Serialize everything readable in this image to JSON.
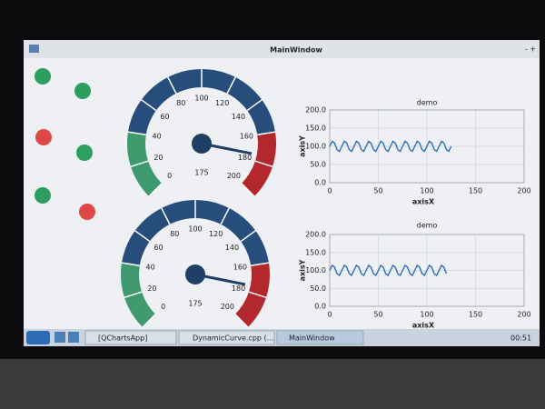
{
  "window": {
    "title": "MainWindow"
  },
  "gauges": [
    {
      "ticks": [
        0,
        20,
        40,
        60,
        80,
        100,
        120,
        140,
        160,
        180,
        200
      ],
      "value": 175,
      "sections": [
        {
          "from": 0,
          "to": 40,
          "color": "#3f9a6e"
        },
        {
          "from": 40,
          "to": 160,
          "color": "#264d7c"
        },
        {
          "from": 160,
          "to": 200,
          "color": "#b3282d"
        }
      ]
    },
    {
      "ticks": [
        0,
        20,
        40,
        60,
        80,
        100,
        120,
        140,
        160,
        180,
        200
      ],
      "value": 175,
      "sections": [
        {
          "from": 0,
          "to": 40,
          "color": "#3f9a6e"
        },
        {
          "from": 40,
          "to": 160,
          "color": "#264d7c"
        },
        {
          "from": 160,
          "to": 200,
          "color": "#b3282d"
        }
      ]
    }
  ],
  "charts": [
    {
      "type": "line",
      "title": "demo",
      "x_label": "axisX",
      "y_label": "axisY",
      "color": "#2f6fb6",
      "xlim": [
        0,
        200
      ],
      "xticks": [
        0,
        50,
        100,
        150,
        200
      ],
      "ylim": [
        0,
        200
      ],
      "yticks": [
        {
          "value": 0,
          "label": "0.0"
        },
        {
          "value": 50,
          "label": "50.0"
        },
        {
          "value": 100,
          "label": "100.0"
        },
        {
          "value": 150,
          "label": "150.0"
        },
        {
          "value": 200,
          "label": "200.0"
        }
      ],
      "x": [
        0,
        2.5,
        5,
        7.5,
        10,
        12.5,
        15,
        17.5,
        20,
        22.5,
        25,
        27.5,
        30,
        32.5,
        35,
        37.5,
        40,
        42.5,
        45,
        47.5,
        50,
        52.5,
        55,
        57.5,
        60,
        62.5,
        65,
        67.5,
        70,
        72.5,
        75,
        77.5,
        80,
        82.5,
        85,
        87.5,
        90,
        92.5,
        95,
        97.5,
        100,
        102.5,
        105,
        107.5,
        110,
        112.5,
        115,
        117.5,
        120,
        122.5,
        125
      ],
      "values": [
        100,
        114,
        109,
        91,
        86,
        100,
        114,
        109,
        91,
        86,
        100,
        114,
        109,
        91,
        86,
        100,
        114,
        109,
        91,
        86,
        100,
        114,
        109,
        91,
        86,
        100,
        114,
        109,
        91,
        86,
        100,
        114,
        109,
        91,
        86,
        100,
        114,
        109,
        91,
        86,
        100,
        114,
        109,
        91,
        86,
        100,
        114,
        109,
        91,
        86,
        100
      ]
    },
    {
      "type": "line",
      "title": "demo",
      "x_label": "axisX",
      "y_label": "axisY",
      "color": "#2f6fb6",
      "xlim": [
        0,
        200
      ],
      "xticks": [
        0,
        50,
        100,
        150,
        200
      ],
      "ylim": [
        0,
        200
      ],
      "yticks": [
        {
          "value": 0,
          "label": "0.0"
        },
        {
          "value": 50,
          "label": "50.0"
        },
        {
          "value": 100,
          "label": "100.0"
        },
        {
          "value": 150,
          "label": "150.0"
        },
        {
          "value": 200,
          "label": "200.0"
        }
      ],
      "x": [
        0,
        2.5,
        5,
        7.5,
        10,
        12.5,
        15,
        17.5,
        20,
        22.5,
        25,
        27.5,
        30,
        32.5,
        35,
        37.5,
        40,
        42.5,
        45,
        47.5,
        50,
        52.5,
        55,
        57.5,
        60,
        62.5,
        65,
        67.5,
        70,
        72.5,
        75,
        77.5,
        80,
        82.5,
        85,
        87.5,
        90,
        92.5,
        95,
        97.5,
        100,
        102.5,
        105,
        107.5,
        110,
        112.5,
        115,
        117.5,
        120
      ],
      "values": [
        100,
        114,
        109,
        91,
        86,
        100,
        114,
        109,
        91,
        86,
        100,
        114,
        109,
        91,
        86,
        100,
        114,
        109,
        91,
        86,
        100,
        114,
        109,
        91,
        86,
        100,
        114,
        109,
        91,
        86,
        100,
        114,
        109,
        91,
        86,
        100,
        114,
        109,
        91,
        86,
        100,
        114,
        109,
        91,
        86,
        100,
        114,
        109,
        91
      ]
    }
  ],
  "taskbar": {
    "items": [
      "[QChartsApp]",
      "DynamicCurve.cpp (...",
      "MainWindow"
    ],
    "clock": "00:51"
  }
}
